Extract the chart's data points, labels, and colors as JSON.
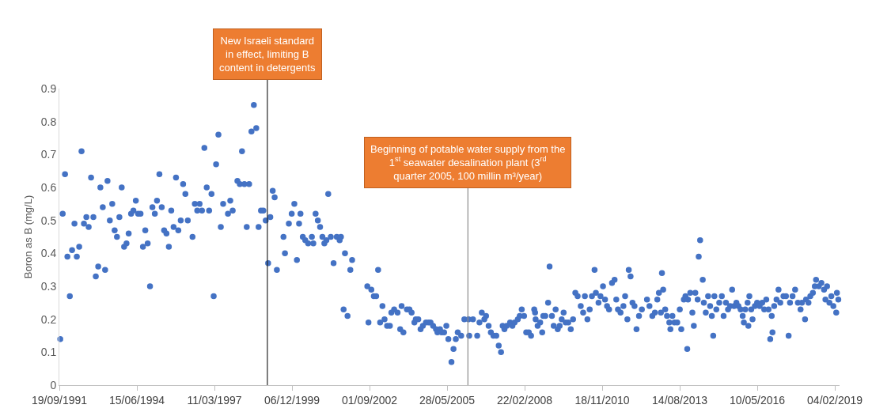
{
  "chart_data": {
    "type": "scatter",
    "ylabel": "Boron as B (mg/L)",
    "marker": "circle",
    "xlim": [
      "1991-09-19",
      "2019-04-05"
    ],
    "ylim": [
      0,
      0.9
    ],
    "yticks": [
      0,
      0.1,
      0.2,
      0.3,
      0.4,
      0.5,
      0.6,
      0.7,
      0.8,
      0.9
    ],
    "xticks": [
      {
        "value": "1991-09-19",
        "label": "19/09/1991"
      },
      {
        "value": "1994-06-15",
        "label": "15/06/1994"
      },
      {
        "value": "1997-03-11",
        "label": "11/03/1997"
      },
      {
        "value": "1999-12-06",
        "label": "06/12/1999"
      },
      {
        "value": "2002-09-01",
        "label": "01/09/2002"
      },
      {
        "value": "2005-05-28",
        "label": "28/05/2005"
      },
      {
        "value": "2008-02-22",
        "label": "22/02/2008"
      },
      {
        "value": "2010-11-18",
        "label": "18/11/2010"
      },
      {
        "value": "2013-08-14",
        "label": "14/08/2013"
      },
      {
        "value": "2016-05-10",
        "label": "10/05/2016"
      },
      {
        "value": "2019-02-04",
        "label": "04/02/2019"
      }
    ],
    "ref_lines": [
      {
        "axis": "x",
        "value": "1999-01-22",
        "label": "New Israeli standard in effect, limiting B content in detergents",
        "color": "#262626"
      },
      {
        "axis": "x",
        "value": "2006-02-20",
        "label": "Beginning of potable water supply from the 1$^{st}$ seawater desalination plant (3$^{rd}$ quarter 2005, 100 millin m³/year)",
        "color": "#8c8c8c"
      }
    ],
    "series": [
      {
        "color": "#4472c4",
        "x": [
          "1991-10",
          "1991-11",
          "1991-12",
          "1992-01",
          "1992-02",
          "1992-03",
          "1992-04",
          "1992-05",
          "1992-06",
          "1992-07",
          "1992-08",
          "1992-09",
          "1992-10",
          "1992-11",
          "1992-12",
          "1993-01",
          "1993-02",
          "1993-03",
          "1993-04",
          "1993-05",
          "1993-06",
          "1993-07",
          "1993-08",
          "1993-09",
          "1993-10",
          "1993-11",
          "1993-12",
          "1994-01",
          "1994-02",
          "1994-03",
          "1994-04",
          "1994-05",
          "1994-06",
          "1994-07",
          "1994-08",
          "1994-09",
          "1994-10",
          "1994-11",
          "1994-12",
          "1995-01",
          "1995-02",
          "1995-03",
          "1995-04",
          "1995-05",
          "1995-06",
          "1995-07",
          "1995-08",
          "1995-09",
          "1995-10",
          "1995-11",
          "1995-12",
          "1996-01",
          "1996-02",
          "1996-03",
          "1996-04",
          "1996-06",
          "1996-07",
          "1996-08",
          "1996-09",
          "1996-10",
          "1996-11",
          "1996-12",
          "1997-01",
          "1997-02",
          "1997-03",
          "1997-04",
          "1997-05",
          "1997-06",
          "1997-07",
          "1997-09",
          "1997-10",
          "1997-11",
          "1998-01",
          "1998-02",
          "1998-03",
          "1998-04",
          "1998-05",
          "1998-06",
          "1998-07",
          "1998-08",
          "1998-09",
          "1998-10",
          "1998-11",
          "1998-12",
          "1999-01",
          "1999-02",
          "1999-03",
          "1999-04-01",
          "1999-04-26",
          "1999-05-25",
          "1999-08-18",
          "1999-09-06",
          "1999-10-26",
          "1999-12-02",
          "2000-01-05",
          "2000-02-07",
          "2000-03-06",
          "2000-03-24",
          "2000-04-23",
          "2000-05-25",
          "2000-07-01",
          "2000-08-18",
          "2000-09-06",
          "2000-10-05",
          "2000-11-03",
          "2000-12-02",
          "2001-01-01",
          "2001-01-26",
          "2001-02-21",
          "2001-03-17",
          "2001-04-19",
          "2001-05-25",
          "2001-07-05",
          "2001-08-11",
          "2001-08-28",
          "2001-10-01",
          "2001-10-19",
          "2001-11-21",
          "2001-12-27",
          "2002-01-19",
          "2002-08-03",
          "2002-08-18",
          "2002-09-24",
          "2002-10-26",
          "2002-11-25",
          "2002-12-20",
          "2003-01-15",
          "2003-02-14",
          "2003-03-13",
          "2003-04-15",
          "2003-05-21",
          "2003-06-09",
          "2003-07-15",
          "2003-08-28",
          "2003-10-01",
          "2003-10-19",
          "2003-11-11",
          "2003-12-27",
          "2004-01-28",
          "2004-02-25",
          "2004-04-01",
          "2004-04-19",
          "2004-05-21",
          "2004-06-20",
          "2004-07-19",
          "2004-08-28",
          "2004-10-01",
          "2004-10-26",
          "2004-11-28",
          "2005-01-05",
          "2005-01-23",
          "2005-02-25",
          "2005-03-17",
          "2005-04-19",
          "2005-05-18",
          "2005-06-13",
          "2005-07-23",
          "2005-08-18",
          "2005-09-17",
          "2005-10-12",
          "2005-11-25",
          "2006-01-05",
          "2006-02-28",
          "2006-03-09",
          "2006-04-26",
          "2006-06-20",
          "2006-07-19",
          "2006-08-18",
          "2006-09-20",
          "2006-10-12",
          "2006-11-14",
          "2006-12-13",
          "2007-01-15",
          "2007-02-21",
          "2007-03-24",
          "2007-04-23",
          "2007-05-14",
          "2007-06-06",
          "2007-07-05",
          "2007-08-18",
          "2007-09-17",
          "2007-10-15",
          "2007-11-25",
          "2007-12-20",
          "2008-01-15",
          "2008-02-14",
          "2008-03-13",
          "2008-04-15",
          "2008-05-14",
          "2008-06-24",
          "2008-07-05",
          "2008-07-12",
          "2008-08-07",
          "2008-09-09",
          "2008-10-05",
          "2008-10-19",
          "2008-11-14",
          "2008-12-20",
          "2009-01-08",
          "2009-02-07",
          "2009-03-02",
          "2009-03-27",
          "2009-04-23",
          "2009-05-18",
          "2009-06-13",
          "2009-07-08",
          "2009-08-03",
          "2009-09-06",
          "2009-10-08",
          "2009-11-07",
          "2009-12-06",
          "2010-01-05",
          "2010-02-14",
          "2010-03-17",
          "2010-04-08",
          "2010-05-11",
          "2010-06-09",
          "2010-07-08",
          "2010-08-11",
          "2010-08-28",
          "2010-10-01",
          "2010-10-26",
          "2010-11-28",
          "2010-12-24",
          "2011-01-19",
          "2011-02-14",
          "2011-03-24",
          "2011-04-26",
          "2011-05-18",
          "2011-06-09",
          "2011-07-12",
          "2011-08-18",
          "2011-09-09",
          "2011-10-08",
          "2011-10-26",
          "2011-11-18",
          "2011-12-13",
          "2012-01-08",
          "2012-02-03",
          "2012-03-06",
          "2012-04-12",
          "2012-06-17",
          "2012-07-19",
          "2012-08-25",
          "2012-09-27",
          "2012-10-28",
          "2012-11-18",
          "2012-12-13",
          "2012-12-27",
          "2013-01-12",
          "2013-02-07",
          "2013-03-02",
          "2013-04-01",
          "2013-04-15",
          "2013-05-11",
          "2013-06-06",
          "2013-07-12",
          "2013-08-14",
          "2013-09-02",
          "2013-10-05",
          "2013-10-26",
          "2013-11-18",
          "2013-11-28",
          "2013-12-27",
          "2014-01-23",
          "2014-02-11",
          "2014-03-02",
          "2014-04-01",
          "2014-04-15",
          "2014-05-03",
          "2014-06-06",
          "2014-06-20",
          "2014-07-15",
          "2014-08-14",
          "2014-09-09",
          "2014-10-01",
          "2014-10-19",
          "2014-11-03",
          "2014-11-28",
          "2015-01-05",
          "2015-02-07",
          "2015-03-02",
          "2015-04-01",
          "2015-04-28",
          "2015-05-25",
          "2015-06-20",
          "2015-07-15",
          "2015-08-14",
          "2015-09-09",
          "2015-10-08",
          "2015-11-03",
          "2015-11-18",
          "2015-12-06",
          "2016-01-05",
          "2016-01-15",
          "2016-01-28",
          "2016-02-21",
          "2016-03-09",
          "2016-04-08",
          "2016-05-07",
          "2016-06-09",
          "2016-07-12",
          "2016-08-07",
          "2016-09-02",
          "2016-10-01",
          "2016-10-23",
          "2016-11-11",
          "2016-11-21",
          "2016-12-13",
          "2017-01-12",
          "2017-02-07",
          "2017-03-02",
          "2017-04-12",
          "2017-05-14",
          "2017-06-17",
          "2017-07-05",
          "2017-08-07",
          "2017-09-09",
          "2017-10-15",
          "2017-11-18",
          "2017-12-06",
          "2018-01-15",
          "2018-01-28",
          "2018-02-28",
          "2018-03-24",
          "2018-04-26",
          "2018-05-21",
          "2018-06-06",
          "2018-07-12",
          "2018-08-14",
          "2018-09-17",
          "2018-10-05",
          "2018-10-26",
          "2018-11-25",
          "2018-12-20",
          "2019-01-15",
          "2019-02-21",
          "2019-03-02",
          "2019-03-20"
        ],
        "values": [
          0.14,
          0.52,
          0.64,
          0.39,
          0.27,
          0.41,
          0.49,
          0.39,
          0.42,
          0.71,
          0.49,
          0.51,
          0.48,
          0.63,
          0.51,
          0.33,
          0.36,
          0.6,
          0.54,
          0.35,
          0.62,
          0.5,
          0.55,
          0.47,
          0.45,
          0.51,
          0.6,
          0.42,
          0.43,
          0.46,
          0.52,
          0.53,
          0.56,
          0.52,
          0.52,
          0.42,
          0.47,
          0.43,
          0.3,
          0.54,
          0.52,
          0.56,
          0.64,
          0.54,
          0.47,
          0.46,
          0.42,
          0.53,
          0.48,
          0.63,
          0.47,
          0.5,
          0.61,
          0.58,
          0.5,
          0.45,
          0.55,
          0.53,
          0.55,
          0.53,
          0.72,
          0.6,
          0.53,
          0.58,
          0.27,
          0.67,
          0.76,
          0.48,
          0.55,
          0.52,
          0.56,
          0.53,
          0.62,
          0.61,
          0.71,
          0.61,
          0.48,
          0.61,
          0.77,
          0.85,
          0.78,
          0.48,
          0.53,
          0.53,
          0.5,
          0.37,
          0.51,
          0.59,
          0.57,
          0.35,
          0.45,
          0.4,
          0.49,
          0.52,
          0.55,
          0.38,
          0.49,
          0.52,
          0.45,
          0.44,
          0.43,
          0.45,
          0.43,
          0.52,
          0.5,
          0.48,
          0.45,
          0.43,
          0.44,
          0.58,
          0.45,
          0.37,
          0.45,
          0.44,
          0.45,
          0.23,
          0.4,
          0.21,
          0.35,
          0.38,
          0.3,
          0.19,
          0.29,
          0.27,
          0.27,
          0.35,
          0.19,
          0.24,
          0.2,
          0.18,
          0.18,
          0.22,
          0.23,
          0.22,
          0.17,
          0.24,
          0.16,
          0.23,
          0.23,
          0.22,
          0.19,
          0.2,
          0.2,
          0.17,
          0.18,
          0.19,
          0.19,
          0.19,
          0.18,
          0.17,
          0.16,
          0.17,
          0.16,
          0.16,
          0.18,
          0.14,
          0.07,
          0.11,
          0.14,
          0.16,
          0.15,
          0.2,
          0.2,
          0.15,
          0.2,
          0.15,
          0.19,
          0.22,
          0.2,
          0.21,
          0.18,
          0.16,
          0.15,
          0.15,
          0.12,
          0.1,
          0.18,
          0.17,
          0.18,
          0.19,
          0.18,
          0.19,
          0.2,
          0.21,
          0.23,
          0.21,
          0.16,
          0.16,
          0.15,
          0.23,
          0.22,
          0.2,
          0.18,
          0.19,
          0.16,
          0.21,
          0.21,
          0.25,
          0.36,
          0.21,
          0.18,
          0.23,
          0.17,
          0.18,
          0.2,
          0.22,
          0.19,
          0.19,
          0.17,
          0.2,
          0.28,
          0.27,
          0.24,
          0.22,
          0.27,
          0.2,
          0.23,
          0.27,
          0.35,
          0.28,
          0.25,
          0.27,
          0.3,
          0.26,
          0.24,
          0.23,
          0.31,
          0.32,
          0.26,
          0.23,
          0.22,
          0.24,
          0.27,
          0.2,
          0.35,
          0.33,
          0.25,
          0.24,
          0.17,
          0.21,
          0.23,
          0.26,
          0.24,
          0.21,
          0.22,
          0.26,
          0.28,
          0.22,
          0.34,
          0.29,
          0.23,
          0.21,
          0.19,
          0.17,
          0.21,
          0.19,
          0.19,
          0.23,
          0.17,
          0.26,
          0.27,
          0.11,
          0.26,
          0.28,
          0.22,
          0.18,
          0.28,
          0.26,
          0.39,
          0.44,
          0.32,
          0.25,
          0.22,
          0.27,
          0.24,
          0.21,
          0.15,
          0.27,
          0.23,
          0.25,
          0.27,
          0.21,
          0.25,
          0.23,
          0.24,
          0.29,
          0.24,
          0.25,
          0.24,
          0.23,
          0.21,
          0.19,
          0.23,
          0.25,
          0.18,
          0.27,
          0.23,
          0.2,
          0.24,
          0.25,
          0.24,
          0.25,
          0.23,
          0.26,
          0.23,
          0.14,
          0.21,
          0.16,
          0.24,
          0.26,
          0.29,
          0.25,
          0.27,
          0.27,
          0.15,
          0.25,
          0.27,
          0.29,
          0.25,
          0.23,
          0.25,
          0.2,
          0.26,
          0.25,
          0.27,
          0.28,
          0.3,
          0.32,
          0.3,
          0.31,
          0.29,
          0.26,
          0.3,
          0.25,
          0.27,
          0.24,
          0.22,
          0.28,
          0.26
        ]
      }
    ]
  }
}
